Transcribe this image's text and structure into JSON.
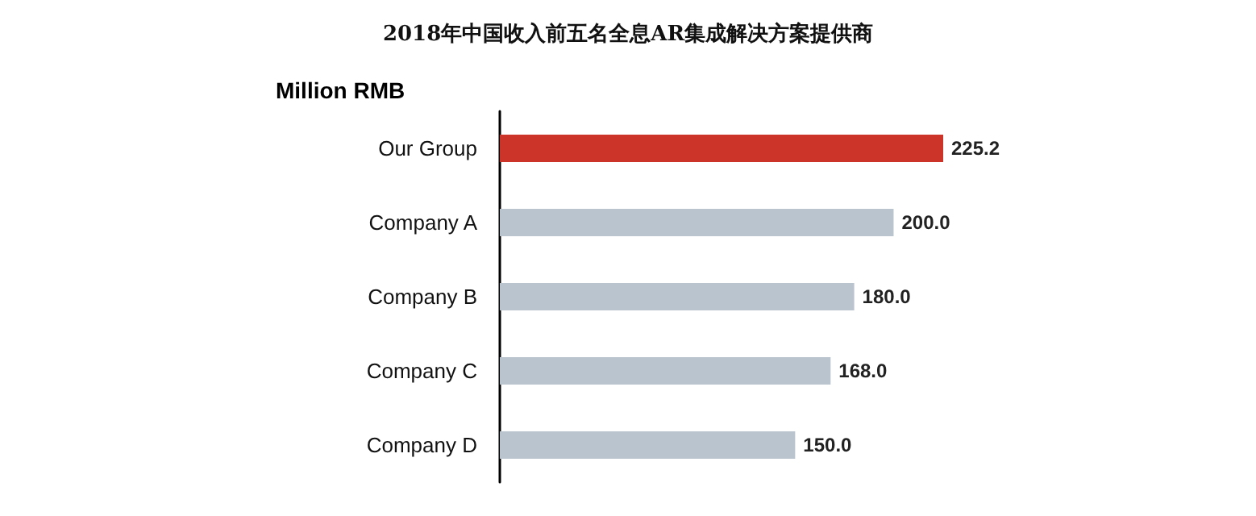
{
  "chart_data": {
    "type": "bar",
    "orientation": "horizontal",
    "title": "2018年中国收入前五名全息AR集成解决方案提供商",
    "xlabel": "Million RMB",
    "categories": [
      "Our Group",
      "Company A",
      "Company B",
      "Company C",
      "Company D"
    ],
    "values": [
      225.2,
      200.0,
      180.0,
      168.0,
      150.0
    ],
    "colors": [
      "#cc3329",
      "#b9c4ce",
      "#b9c4ce",
      "#b9c4ce",
      "#b9c4ce"
    ],
    "value_labels": [
      "225.2",
      "200.0",
      "180.0",
      "168.0",
      "150.0"
    ]
  }
}
